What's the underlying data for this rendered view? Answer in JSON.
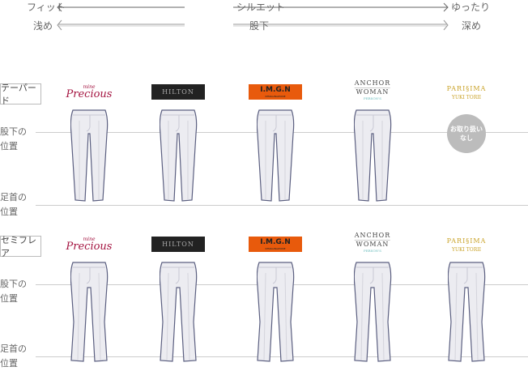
{
  "scale": {
    "silhouette": {
      "left": "フィット",
      "center": "シルエット",
      "right": "ゆったり"
    },
    "inseam": {
      "left": "浅め",
      "center": "股下",
      "right": "深め"
    }
  },
  "sections": [
    {
      "label": "テーパード",
      "variant": "tapered",
      "crotch_label": [
        "股下の",
        "位置"
      ],
      "ankle_label": [
        "足首の",
        "位置"
      ],
      "unavailable_brand": "PARISIMA",
      "unavailable_text": [
        "お取り扱い",
        "なし"
      ]
    },
    {
      "label": "セミフレア",
      "variant": "semi-flare",
      "crotch_label": [
        "股下の",
        "位置"
      ],
      "ankle_label": [
        "足首の",
        "位置"
      ]
    }
  ],
  "brands": {
    "precious": {
      "small": "mine",
      "main": "Precious"
    },
    "hilton": "HILTON",
    "imgn": {
      "main": "I.M.G.N",
      "small": "IMMAGINAZIONE"
    },
    "anchor": {
      "l1": "ANCHOR",
      "l2": "WOMAN",
      "l3": "PERSON'S"
    },
    "parisima": {
      "main": "PARI§IMA",
      "small": "YUKI TORII"
    }
  },
  "colors": {
    "precious": "#a3123f",
    "hilton": "#222222",
    "imgn": "#e85a0c",
    "parisima": "#c9a227",
    "pant_fill": "#ececf1",
    "pant_stroke": "#5b5f80",
    "guide": "#cccccc"
  }
}
